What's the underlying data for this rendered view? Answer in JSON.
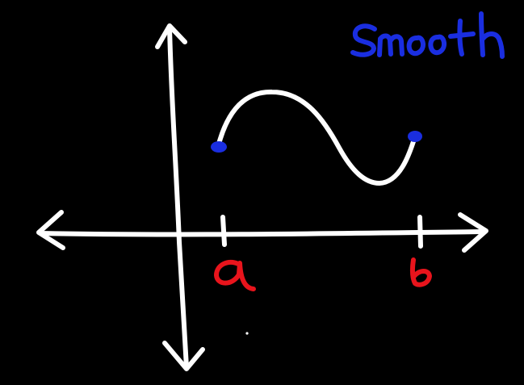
{
  "background_color": "#000000",
  "ink_colors": {
    "axes": "#ffffff",
    "curve": "#ffffff",
    "endpoints": "#1a2ee0",
    "tick_labels": "#e8141c",
    "annotation": "#1a2ee0"
  },
  "annotation": {
    "text": "Smooth"
  },
  "x_axis": {
    "tick_labels": [
      "a",
      "b"
    ]
  }
}
